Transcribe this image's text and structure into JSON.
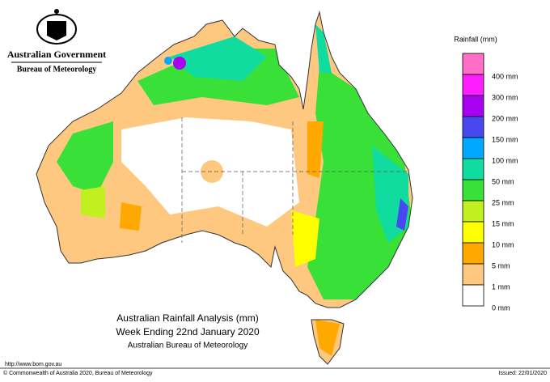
{
  "header": {
    "government": "Australian Government",
    "bureau": "Bureau of Meteorology"
  },
  "legend": {
    "title": "Rainfall (mm)",
    "items": [
      {
        "label": "400 mm",
        "color": "#ff6ec7"
      },
      {
        "label": "300 mm",
        "color": "#ff1cff"
      },
      {
        "label": "200 mm",
        "color": "#a800f0"
      },
      {
        "label": "150 mm",
        "color": "#4848f0"
      },
      {
        "label": "100 mm",
        "color": "#00a8ff"
      },
      {
        "label": "50 mm",
        "color": "#10dca0"
      },
      {
        "label": "25 mm",
        "color": "#38e038"
      },
      {
        "label": "15 mm",
        "color": "#c0f020"
      },
      {
        "label": "10 mm",
        "color": "#ffff00"
      },
      {
        "label": "5 mm",
        "color": "#ffa800"
      },
      {
        "label": "1 mm",
        "color": "#ffc880"
      },
      {
        "label": "0 mm",
        "color": "#ffffff"
      }
    ]
  },
  "map": {
    "title": "Australian Rainfall Analysis (mm)",
    "subtitle": "Week Ending 22nd January 2020",
    "source": "Australian Bureau of Meteorology"
  },
  "footer": {
    "url": "http://www.bom.gov.au",
    "copyright": "© Commonwealth of Australia 2020, Bureau of Meteorology",
    "issued": "Issued: 22/01/2020"
  }
}
